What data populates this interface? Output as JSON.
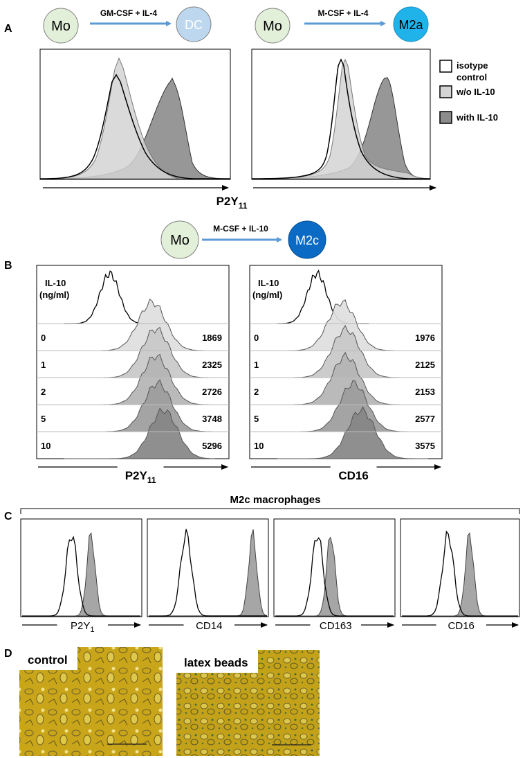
{
  "panel_labels": {
    "a": "A",
    "b": "B",
    "c": "C",
    "d": "D"
  },
  "colors": {
    "isotype": "#ffffff",
    "without_il10": "#d4d4d4",
    "with_il10": "#8c8c8c",
    "mo_fill": "#e2efd9",
    "dc_fill": "#bdd7ee",
    "m2a_fill": "#1fb3ea",
    "m2c_fill": "#0b6bc4",
    "arrow": "#5b9bd5"
  },
  "panel_a": {
    "conversions": [
      {
        "from": "Mo",
        "to": "DC",
        "stimulus": "GM-CSF + IL-4"
      },
      {
        "from": "Mo",
        "to": "M2a",
        "stimulus": "M-CSF + IL-4"
      }
    ],
    "legend": [
      {
        "label1": "isotype",
        "label2": "control",
        "color": "#ffffff"
      },
      {
        "label1": "w/o IL-10",
        "label2": "",
        "color": "#d4d4d4"
      },
      {
        "label1": "with IL-10",
        "label2": "",
        "color": "#8c8c8c"
      }
    ],
    "axis_main": "P2Y",
    "axis_sub": "11"
  },
  "panel_b": {
    "conversion": {
      "from": "Mo",
      "to": "M2c",
      "stimulus": "M-CSF + IL-10"
    },
    "header_line1": "IL-10",
    "header_line2": "(ng/ml)",
    "doses": [
      "0",
      "1",
      "2",
      "5",
      "10"
    ],
    "plots": [
      {
        "axis_main": "P2Y",
        "axis_sub": "11",
        "mfi": [
          "1869",
          "2325",
          "2726",
          "3748",
          "5296"
        ]
      },
      {
        "axis_main": "CD16",
        "axis_sub": "",
        "mfi": [
          "1976",
          "2125",
          "2153",
          "2577",
          "3575"
        ]
      }
    ]
  },
  "panel_c": {
    "title": "M2c macrophages",
    "plots": [
      {
        "marker": "P2Y",
        "sub": "1"
      },
      {
        "marker": "CD14",
        "sub": ""
      },
      {
        "marker": "CD163",
        "sub": ""
      },
      {
        "marker": "CD16",
        "sub": ""
      }
    ]
  },
  "panel_d": {
    "images": [
      {
        "label": "control"
      },
      {
        "label": "latex beads"
      }
    ]
  }
}
